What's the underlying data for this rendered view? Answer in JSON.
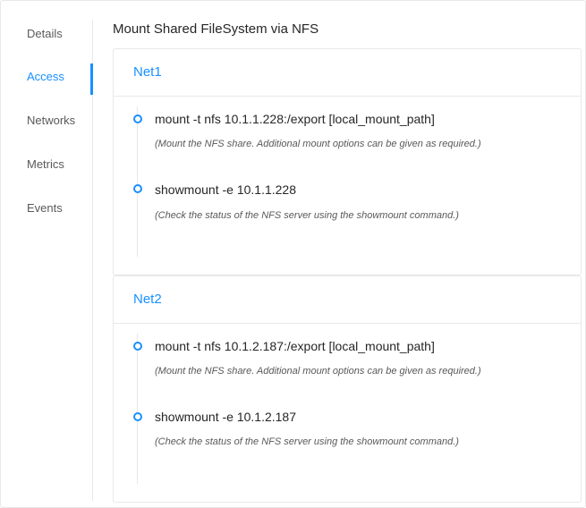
{
  "sidebar": {
    "items": [
      {
        "label": "Details"
      },
      {
        "label": "Access",
        "active": true
      },
      {
        "label": "Networks"
      },
      {
        "label": "Metrics"
      },
      {
        "label": "Events"
      }
    ]
  },
  "main": {
    "title": "Mount Shared FileSystem via NFS",
    "networks": [
      {
        "name": "Net1",
        "steps": [
          {
            "command": "mount -t nfs 10.1.1.228:/export [local_mount_path]",
            "description": "(Mount the NFS share. Additional mount options can be given as required.)"
          },
          {
            "command": "showmount -e 10.1.1.228",
            "description": "(Check the status of the NFS server using the showmount command.)"
          }
        ]
      },
      {
        "name": "Net2",
        "steps": [
          {
            "command": "mount -t nfs 10.1.2.187:/export [local_mount_path]",
            "description": "(Mount the NFS share. Additional mount options can be given as required.)"
          },
          {
            "command": "showmount -e 10.1.2.187",
            "description": "(Check the status of the NFS server using the showmount command.)"
          }
        ]
      }
    ]
  },
  "colors": {
    "accent": "#1890ff"
  }
}
